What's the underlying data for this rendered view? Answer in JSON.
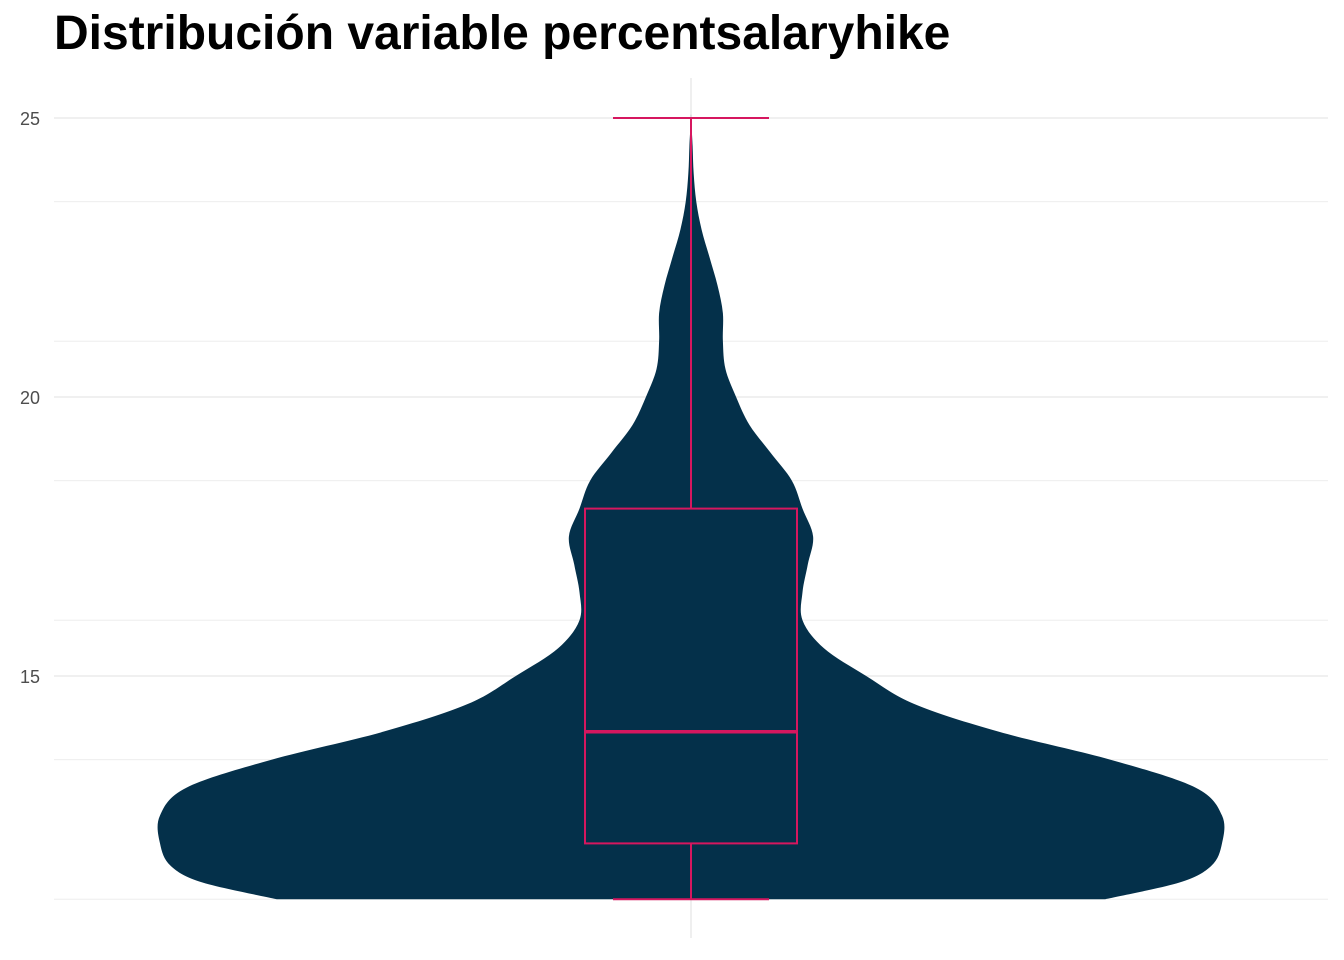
{
  "chart_data": {
    "type": "violin",
    "title": "Distribución variable percentsalaryhike",
    "xlabel": "",
    "ylabel": "",
    "ylim": [
      11,
      25.7
    ],
    "y_ticks": [
      15,
      20,
      25
    ],
    "grid": true,
    "legend": "none",
    "colors": {
      "violin_fill": "#04304A",
      "box_stroke": "#D6175F",
      "grid": "#EBEBEB",
      "tick_text": "#4D4D4D"
    },
    "boxplot": {
      "min": 11,
      "q1": 12,
      "median": 14,
      "q3": 18,
      "max": 25
    },
    "density": [
      {
        "y": 11.0,
        "w": 0.78
      },
      {
        "y": 11.3,
        "w": 0.92
      },
      {
        "y": 11.6,
        "w": 0.98
      },
      {
        "y": 12.0,
        "w": 1.0
      },
      {
        "y": 12.5,
        "w": 1.0
      },
      {
        "y": 13.0,
        "w": 0.95
      },
      {
        "y": 13.5,
        "w": 0.79
      },
      {
        "y": 14.0,
        "w": 0.58
      },
      {
        "y": 14.5,
        "w": 0.42
      },
      {
        "y": 15.0,
        "w": 0.33
      },
      {
        "y": 15.5,
        "w": 0.25
      },
      {
        "y": 16.0,
        "w": 0.21
      },
      {
        "y": 16.5,
        "w": 0.21
      },
      {
        "y": 17.0,
        "w": 0.22
      },
      {
        "y": 17.5,
        "w": 0.23
      },
      {
        "y": 18.0,
        "w": 0.21
      },
      {
        "y": 18.5,
        "w": 0.19
      },
      {
        "y": 19.0,
        "w": 0.15
      },
      {
        "y": 19.5,
        "w": 0.11
      },
      {
        "y": 20.0,
        "w": 0.085
      },
      {
        "y": 20.5,
        "w": 0.065
      },
      {
        "y": 21.0,
        "w": 0.06
      },
      {
        "y": 21.5,
        "w": 0.06
      },
      {
        "y": 22.0,
        "w": 0.05
      },
      {
        "y": 22.5,
        "w": 0.035
      },
      {
        "y": 23.0,
        "w": 0.02
      },
      {
        "y": 23.5,
        "w": 0.01
      },
      {
        "y": 24.0,
        "w": 0.005
      },
      {
        "y": 24.5,
        "w": 0.003
      },
      {
        "y": 25.0,
        "w": 0.0
      }
    ]
  }
}
